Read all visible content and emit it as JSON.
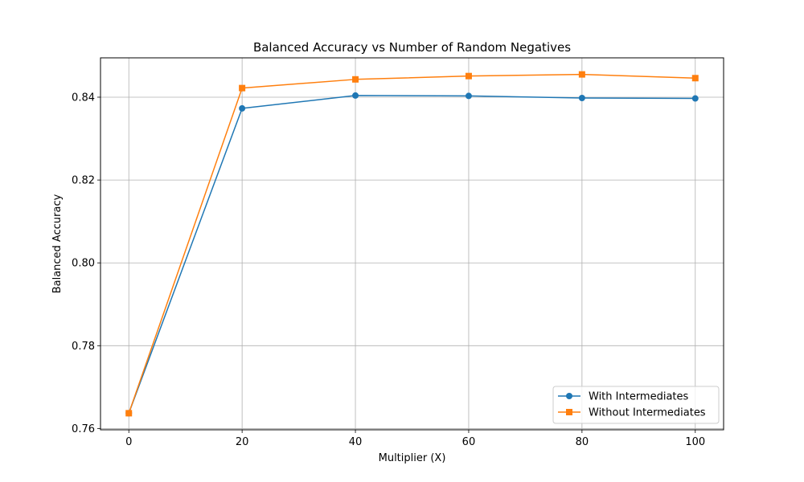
{
  "chart_data": {
    "type": "line",
    "title": "Balanced Accuracy vs Number of Random Negatives",
    "xlabel": "Multiplier (X)",
    "ylabel": "Balanced Accuracy",
    "x": [
      0,
      20,
      40,
      60,
      80,
      100
    ],
    "xlim": [
      -5,
      105
    ],
    "ylim": [
      0.7597,
      0.8495
    ],
    "xticks": [
      0,
      20,
      40,
      60,
      80,
      100
    ],
    "yticks": [
      0.76,
      0.78,
      0.8,
      0.82,
      0.84
    ],
    "ytick_labels": [
      "0.76",
      "0.78",
      "0.80",
      "0.82",
      "0.84"
    ],
    "grid": true,
    "legend_position": "lower right",
    "series": [
      {
        "name": "With Intermediates",
        "marker": "circle",
        "color": "#1f77b4",
        "values": [
          0.7637,
          0.8373,
          0.8404,
          0.8403,
          0.8398,
          0.8397
        ]
      },
      {
        "name": "Without Intermediates",
        "marker": "square",
        "color": "#ff7f0e",
        "values": [
          0.7637,
          0.8422,
          0.8443,
          0.8451,
          0.8455,
          0.8446
        ]
      }
    ]
  }
}
